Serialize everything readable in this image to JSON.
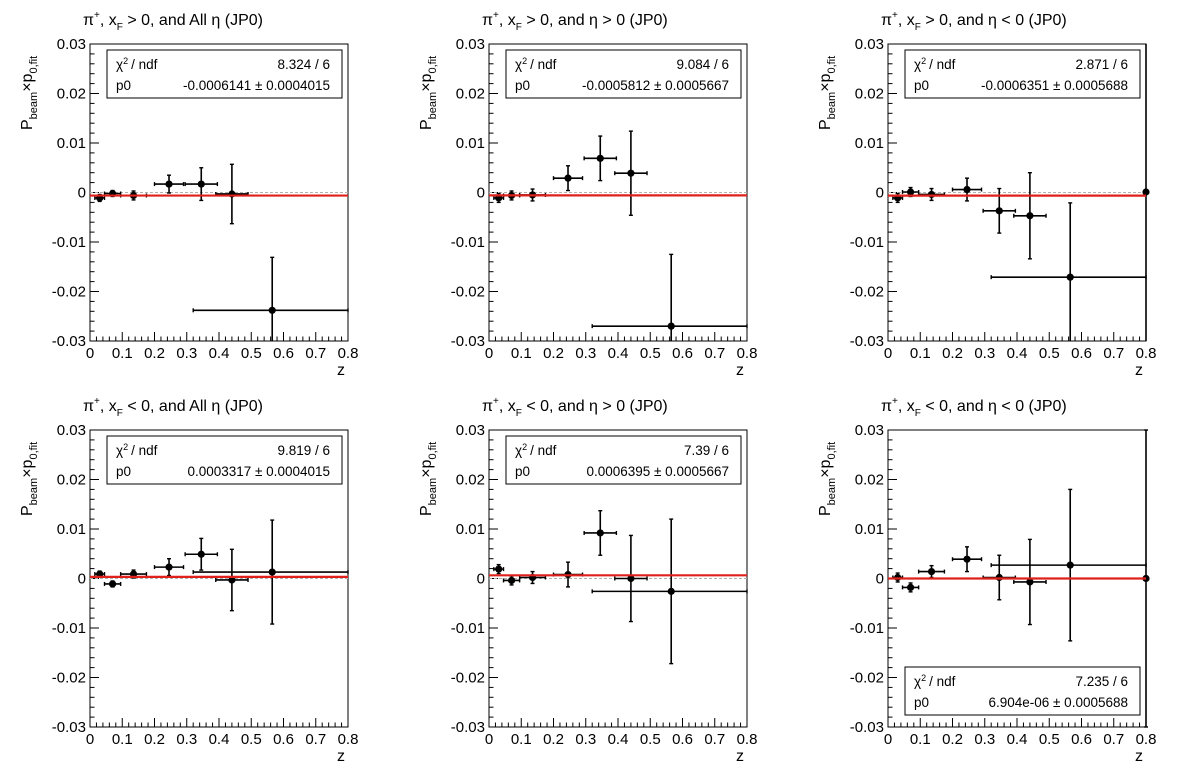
{
  "style": {
    "fit_color": "#e0201b",
    "marker_color": "#000000",
    "zero_line_color": "#b0b0b0"
  },
  "chart_data": [
    {
      "type": "scatter",
      "title": {
        "particle": "π",
        "particle_sup": "+",
        "mid1": ", x",
        "mid1_sub": "F",
        "mid2": " > 0, and All η (JP0)"
      },
      "xlabel": "z",
      "ylabel": {
        "main": "P",
        "sub1": "beam",
        "mid": "×p",
        "sub2": "0,fit"
      },
      "xlim": [
        0,
        0.8
      ],
      "ylim": [
        -0.03,
        0.03
      ],
      "xticks": [
        "0",
        "0.1",
        "0.2",
        "0.3",
        "0.4",
        "0.5",
        "0.6",
        "0.7",
        "0.8"
      ],
      "yticks": [
        "0.03",
        "0.02",
        "0.01",
        "0",
        "-0.01",
        "-0.02",
        "-0.03"
      ],
      "stats": {
        "position": "top-right",
        "row1_label": "/ ndf",
        "row1_value": "8.324 / 6",
        "row2_label": "p0",
        "row2_value": "-0.0006141 ± 0.0004015"
      },
      "fit": {
        "p0": -0.0006141
      },
      "points": [
        {
          "x": 0.03,
          "xerr": 0.015,
          "y": -0.0011,
          "yerr": 0.0007
        },
        {
          "x": 0.07,
          "xerr": 0.025,
          "y": -0.0002,
          "yerr": 0.0006
        },
        {
          "x": 0.135,
          "xerr": 0.04,
          "y": -0.0006,
          "yerr": 0.0009
        },
        {
          "x": 0.245,
          "xerr": 0.045,
          "y": 0.0017,
          "yerr": 0.0018
        },
        {
          "x": 0.345,
          "xerr": 0.05,
          "y": 0.0017,
          "yerr": 0.0033
        },
        {
          "x": 0.44,
          "xerr": 0.05,
          "y": -0.0003,
          "yerr": 0.006
        },
        {
          "x": 0.565,
          "xerr": 0.245,
          "y": -0.0238,
          "yerr": 0.0107
        }
      ]
    },
    {
      "type": "scatter",
      "title": {
        "particle": "π",
        "particle_sup": "+",
        "mid1": ", x",
        "mid1_sub": "F",
        "mid2": " > 0, and η > 0 (JP0)"
      },
      "xlabel": "z",
      "ylabel": {
        "main": "P",
        "sub1": "beam",
        "mid": "×p",
        "sub2": "0,fit"
      },
      "xlim": [
        0,
        0.8
      ],
      "ylim": [
        -0.03,
        0.03
      ],
      "xticks": [
        "0",
        "0.1",
        "0.2",
        "0.3",
        "0.4",
        "0.5",
        "0.6",
        "0.7",
        "0.8"
      ],
      "yticks": [
        "0.03",
        "0.02",
        "0.01",
        "0",
        "-0.01",
        "-0.02",
        "-0.03"
      ],
      "stats": {
        "position": "top-right",
        "row1_label": "/ ndf",
        "row1_value": "9.084 / 6",
        "row2_label": "p0",
        "row2_value": "-0.0005812 ± 0.0005667"
      },
      "fit": {
        "p0": -0.0005812
      },
      "points": [
        {
          "x": 0.03,
          "xerr": 0.015,
          "y": -0.0011,
          "yerr": 0.0009
        },
        {
          "x": 0.07,
          "xerr": 0.025,
          "y": -0.0006,
          "yerr": 0.0009
        },
        {
          "x": 0.135,
          "xerr": 0.04,
          "y": -0.0005,
          "yerr": 0.0012
        },
        {
          "x": 0.245,
          "xerr": 0.045,
          "y": 0.0029,
          "yerr": 0.0025
        },
        {
          "x": 0.345,
          "xerr": 0.05,
          "y": 0.0069,
          "yerr": 0.0045
        },
        {
          "x": 0.44,
          "xerr": 0.05,
          "y": 0.0039,
          "yerr": 0.0085
        },
        {
          "x": 0.565,
          "xerr": 0.245,
          "y": -0.027,
          "yerr": 0.0145
        }
      ]
    },
    {
      "type": "scatter",
      "title": {
        "particle": "π",
        "particle_sup": "+",
        "mid1": ", x",
        "mid1_sub": "F",
        "mid2": " > 0, and η < 0 (JP0)"
      },
      "xlabel": "z",
      "ylabel": {
        "main": "P",
        "sub1": "beam",
        "mid": "×p",
        "sub2": "0,fit"
      },
      "xlim": [
        0,
        0.8
      ],
      "ylim": [
        -0.03,
        0.03
      ],
      "xticks": [
        "0",
        "0.1",
        "0.2",
        "0.3",
        "0.4",
        "0.5",
        "0.6",
        "0.7",
        "0.8"
      ],
      "yticks": [
        "0.03",
        "0.02",
        "0.01",
        "0",
        "-0.01",
        "-0.02",
        "-0.03"
      ],
      "stats": {
        "position": "top-right",
        "row1_label": "/ ndf",
        "row1_value": "2.871 / 6",
        "row2_label": "p0",
        "row2_value": "-0.0006351 ± 0.0005688"
      },
      "fit": {
        "p0": -0.0006351
      },
      "points": [
        {
          "x": 0.03,
          "xerr": 0.015,
          "y": -0.0011,
          "yerr": 0.0009
        },
        {
          "x": 0.07,
          "xerr": 0.025,
          "y": 0.0001,
          "yerr": 0.0009
        },
        {
          "x": 0.135,
          "xerr": 0.04,
          "y": -0.0004,
          "yerr": 0.0012
        },
        {
          "x": 0.245,
          "xerr": 0.045,
          "y": 0.0006,
          "yerr": 0.0023
        },
        {
          "x": 0.345,
          "xerr": 0.05,
          "y": -0.0037,
          "yerr": 0.0045
        },
        {
          "x": 0.44,
          "xerr": 0.05,
          "y": -0.0047,
          "yerr": 0.0087
        },
        {
          "x": 0.565,
          "xerr": 0.245,
          "y": -0.0171,
          "yerr": 0.015
        },
        {
          "x": 0.8,
          "xerr": 0,
          "y": 0.0001,
          "yerr": 0.035
        }
      ]
    },
    {
      "type": "scatter",
      "title": {
        "particle": "π",
        "particle_sup": "+",
        "mid1": ", x",
        "mid1_sub": "F",
        "mid2": " < 0, and All η (JP0)"
      },
      "xlabel": "z",
      "ylabel": {
        "main": "P",
        "sub1": "beam",
        "mid": "×p",
        "sub2": "0,fit"
      },
      "xlim": [
        0,
        0.8
      ],
      "ylim": [
        -0.03,
        0.03
      ],
      "xticks": [
        "0",
        "0.1",
        "0.2",
        "0.3",
        "0.4",
        "0.5",
        "0.6",
        "0.7",
        "0.8"
      ],
      "yticks": [
        "0.03",
        "0.02",
        "0.01",
        "0",
        "-0.01",
        "-0.02",
        "-0.03"
      ],
      "stats": {
        "position": "top-right",
        "row1_label": "/ ndf",
        "row1_value": "9.819 / 6",
        "row2_label": "p0",
        "row2_value": "0.0003317 ± 0.0004015"
      },
      "fit": {
        "p0": 0.0003317
      },
      "points": [
        {
          "x": 0.03,
          "xerr": 0.015,
          "y": 0.0009,
          "yerr": 0.0006
        },
        {
          "x": 0.07,
          "xerr": 0.025,
          "y": -0.0011,
          "yerr": 0.0006
        },
        {
          "x": 0.135,
          "xerr": 0.04,
          "y": 0.0009,
          "yerr": 0.0008
        },
        {
          "x": 0.245,
          "xerr": 0.045,
          "y": 0.0023,
          "yerr": 0.0017
        },
        {
          "x": 0.345,
          "xerr": 0.05,
          "y": 0.0049,
          "yerr": 0.0032
        },
        {
          "x": 0.44,
          "xerr": 0.05,
          "y": -0.0003,
          "yerr": 0.0062
        },
        {
          "x": 0.565,
          "xerr": 0.245,
          "y": 0.0013,
          "yerr": 0.0105
        }
      ]
    },
    {
      "type": "scatter",
      "title": {
        "particle": "π",
        "particle_sup": "+",
        "mid1": ", x",
        "mid1_sub": "F",
        "mid2": " < 0, and η > 0 (JP0)"
      },
      "xlabel": "z",
      "ylabel": {
        "main": "P",
        "sub1": "beam",
        "mid": "×p",
        "sub2": "0,fit"
      },
      "xlim": [
        0,
        0.8
      ],
      "ylim": [
        -0.03,
        0.03
      ],
      "xticks": [
        "0",
        "0.1",
        "0.2",
        "0.3",
        "0.4",
        "0.5",
        "0.6",
        "0.7",
        "0.8"
      ],
      "yticks": [
        "0.03",
        "0.02",
        "0.01",
        "0",
        "-0.01",
        "-0.02",
        "-0.03"
      ],
      "stats": {
        "position": "top-right",
        "row1_label": "/ ndf",
        "row1_value": "7.39 / 6",
        "row2_label": "p0",
        "row2_value": "0.0006395 ± 0.0005667"
      },
      "fit": {
        "p0": 0.0006395
      },
      "points": [
        {
          "x": 0.03,
          "xerr": 0.015,
          "y": 0.0019,
          "yerr": 0.0009
        },
        {
          "x": 0.07,
          "xerr": 0.025,
          "y": -0.0004,
          "yerr": 0.0009
        },
        {
          "x": 0.135,
          "xerr": 0.04,
          "y": 0.0002,
          "yerr": 0.0012
        },
        {
          "x": 0.245,
          "xerr": 0.045,
          "y": 0.0008,
          "yerr": 0.0025
        },
        {
          "x": 0.345,
          "xerr": 0.05,
          "y": 0.0092,
          "yerr": 0.0045
        },
        {
          "x": 0.44,
          "xerr": 0.05,
          "y": 0.0,
          "yerr": 0.0087
        },
        {
          "x": 0.565,
          "xerr": 0.245,
          "y": -0.0026,
          "yerr": 0.0146
        }
      ]
    },
    {
      "type": "scatter",
      "title": {
        "particle": "π",
        "particle_sup": "+",
        "mid1": ", x",
        "mid1_sub": "F",
        "mid2": " < 0, and η < 0 (JP0)"
      },
      "xlabel": "z",
      "ylabel": {
        "main": "P",
        "sub1": "beam",
        "mid": "×p",
        "sub2": "0,fit"
      },
      "xlim": [
        0,
        0.8
      ],
      "ylim": [
        -0.03,
        0.03
      ],
      "xticks": [
        "0",
        "0.1",
        "0.2",
        "0.3",
        "0.4",
        "0.5",
        "0.6",
        "0.7",
        "0.8"
      ],
      "yticks": [
        "0.03",
        "0.02",
        "0.01",
        "0",
        "-0.01",
        "-0.02",
        "-0.03"
      ],
      "stats": {
        "position": "bottom-right",
        "row1_label": "/ ndf",
        "row1_value": "7.235 / 6",
        "row2_label": "p0",
        "row2_value": "6.904e-06 ± 0.0005688"
      },
      "fit": {
        "p0": 6.904e-06
      },
      "points": [
        {
          "x": 0.03,
          "xerr": 0.015,
          "y": 0.0002,
          "yerr": 0.0009
        },
        {
          "x": 0.07,
          "xerr": 0.025,
          "y": -0.0018,
          "yerr": 0.0009
        },
        {
          "x": 0.135,
          "xerr": 0.04,
          "y": 0.0014,
          "yerr": 0.0012
        },
        {
          "x": 0.245,
          "xerr": 0.045,
          "y": 0.0039,
          "yerr": 0.0025
        },
        {
          "x": 0.345,
          "xerr": 0.05,
          "y": 0.0002,
          "yerr": 0.0045
        },
        {
          "x": 0.44,
          "xerr": 0.05,
          "y": -0.0007,
          "yerr": 0.0086
        },
        {
          "x": 0.565,
          "xerr": 0.245,
          "y": 0.0027,
          "yerr": 0.0153
        },
        {
          "x": 0.8,
          "xerr": 0,
          "y": 0.0,
          "yerr": 0.03
        }
      ]
    }
  ]
}
